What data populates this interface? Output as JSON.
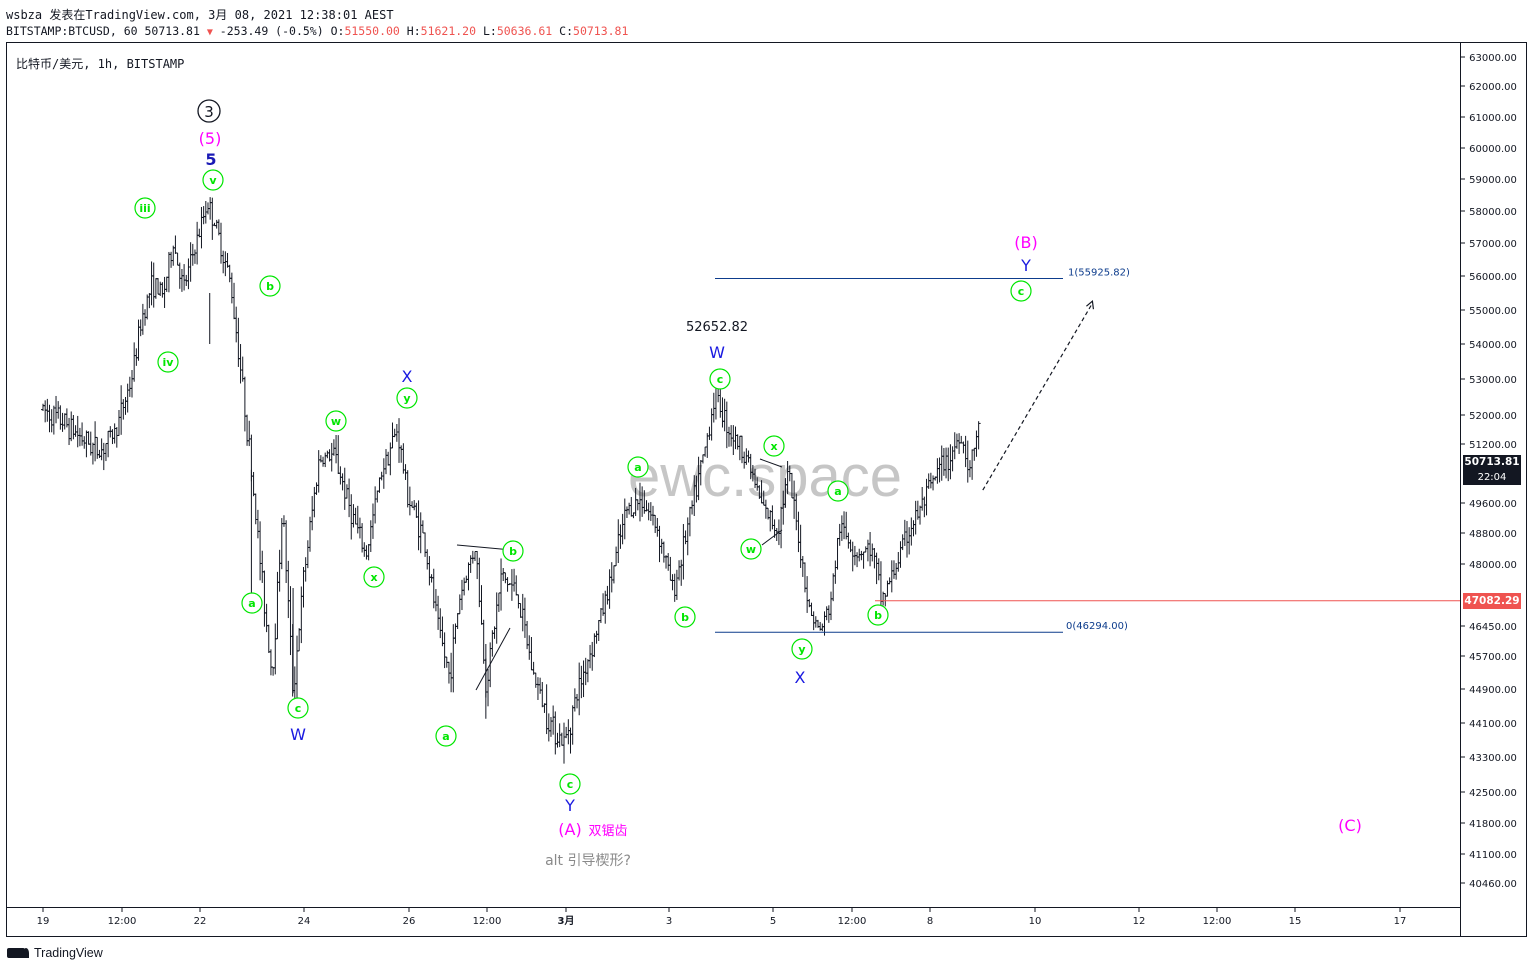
{
  "header": {
    "line1": "wsbza 发表在TradingView.com, 3月 08, 2021 12:38:01 AEST",
    "symbol_info": "BITSTAMP:BTCUSD, 60",
    "last": "50713.81",
    "change_arrow": "▼",
    "change": "-253.49 (-0.5%)",
    "o_label": "O:",
    "o_value": "51550.00",
    "h_label": "H:",
    "h_value": "51621.20",
    "l_label": "L:",
    "l_value": "50636.61",
    "c_label": "C:",
    "c_value": "50713.81"
  },
  "symbol_title": "比特币/美元, 1h, BITSTAMP",
  "watermark": "ewc.space",
  "brand": "TradingView",
  "price_tags": {
    "last_price": "50713.81",
    "countdown": "22:04",
    "level": "47082.29"
  },
  "colors": {
    "bar": "#131722",
    "wave_green": "#00e600",
    "magenta": "#ff00ff",
    "blue": "#1a1ae0",
    "fib_line": "#0d3c8c",
    "level_line": "#ef5350",
    "watermark": "#bdbdbd"
  },
  "chart_data": {
    "type": "ohlc",
    "symbol": "BITSTAMP:BTCUSD",
    "interval": "1h",
    "y_ticks": [
      "63000.00",
      "62000.00",
      "61000.00",
      "60000.00",
      "59000.00",
      "58000.00",
      "57000.00",
      "56000.00",
      "55000.00",
      "54000.00",
      "53000.00",
      "52000.00",
      "51200.00",
      "49600.00",
      "48800.00",
      "48000.00",
      "46450.00",
      "45700.00",
      "44900.00",
      "44100.00",
      "43300.00",
      "42500.00",
      "41800.00",
      "41100.00",
      "40460.00"
    ],
    "x_ticks": [
      "19",
      "12:00",
      "22",
      "24",
      "26",
      "12:00",
      "3月",
      "3",
      "5",
      "12:00",
      "8",
      "10",
      "12",
      "12:00",
      "15",
      "17"
    ],
    "fib_levels": [
      {
        "label": "1(55925.82)",
        "value": 55925.82
      },
      {
        "label": "0(46294.00)",
        "value": 46294.0
      }
    ],
    "horizontal_level": 47082.29,
    "price_path": [
      [
        19.0,
        52150
      ],
      [
        19.4,
        51800
      ],
      [
        19.8,
        51300
      ],
      [
        20.1,
        51000
      ],
      [
        20.4,
        51600
      ],
      [
        20.7,
        53000
      ],
      [
        20.9,
        54800
      ],
      [
        21.1,
        55800
      ],
      [
        21.3,
        55400
      ],
      [
        21.5,
        57000
      ],
      [
        21.7,
        55600
      ],
      [
        21.9,
        56800
      ],
      [
        22.0,
        57300
      ],
      [
        22.15,
        58300
      ],
      [
        22.3,
        57600
      ],
      [
        22.6,
        55800
      ],
      [
        22.8,
        53200
      ],
      [
        23.0,
        50500
      ],
      [
        23.2,
        47600
      ],
      [
        23.4,
        45200
      ],
      [
        23.6,
        49500
      ],
      [
        23.8,
        44800
      ],
      [
        24.0,
        47600
      ],
      [
        24.3,
        50800
      ],
      [
        24.6,
        50900
      ],
      [
        24.9,
        49400
      ],
      [
        25.2,
        48200
      ],
      [
        25.5,
        50500
      ],
      [
        25.8,
        51600
      ],
      [
        26.0,
        49800
      ],
      [
        26.3,
        48700
      ],
      [
        26.6,
        46300
      ],
      [
        26.8,
        45200
      ],
      [
        27.0,
        47200
      ],
      [
        27.3,
        48500
      ],
      [
        27.5,
        45000
      ],
      [
        27.8,
        47700
      ],
      [
        28.1,
        47300
      ],
      [
        28.4,
        45300
      ],
      [
        28.7,
        44200
      ],
      [
        29.0,
        43600
      ],
      [
        29.3,
        45000
      ],
      [
        29.6,
        46200
      ],
      [
        29.9,
        47600
      ],
      [
        30.2,
        49400
      ],
      [
        30.5,
        49700
      ],
      [
        30.8,
        48900
      ],
      [
        31.1,
        47300
      ],
      [
        31.4,
        49100
      ],
      [
        31.7,
        51000
      ],
      [
        31.9,
        52600
      ],
      [
        32.2,
        51500
      ],
      [
        32.5,
        50900
      ],
      [
        32.8,
        49500
      ],
      [
        33.1,
        48900
      ],
      [
        33.3,
        50400
      ],
      [
        33.5,
        48700
      ],
      [
        33.7,
        46900
      ],
      [
        33.9,
        46300
      ],
      [
        34.1,
        46900
      ],
      [
        34.3,
        49000
      ],
      [
        34.6,
        48300
      ],
      [
        34.9,
        48400
      ],
      [
        35.1,
        47100
      ],
      [
        35.3,
        47700
      ],
      [
        35.6,
        48800
      ],
      [
        35.9,
        49600
      ],
      [
        36.2,
        50500
      ],
      [
        36.4,
        50800
      ],
      [
        36.6,
        51500
      ],
      [
        36.8,
        50500
      ],
      [
        36.95,
        51700
      ],
      [
        37.0,
        50700
      ]
    ],
    "projection": [
      [
        37.0,
        49950
      ],
      [
        39.2,
        55200
      ]
    ],
    "annotations": {
      "circled_3": "3",
      "magenta_5": "(5)",
      "blue_5": "5",
      "green": [
        "iii",
        "v",
        "iv",
        "b",
        "a",
        "c",
        "w",
        "x",
        "y",
        "a",
        "b",
        "c",
        "a",
        "b",
        "c",
        "x",
        "w",
        "y",
        "a",
        "b",
        "c"
      ],
      "blue": [
        "W",
        "X",
        "Y",
        "W",
        "X",
        "Y"
      ],
      "magenta": [
        "(A)",
        "双锯齿",
        "(B)",
        "(C)"
      ],
      "price_label": "52652.82",
      "alt_note": "alt 引导楔形?"
    }
  }
}
